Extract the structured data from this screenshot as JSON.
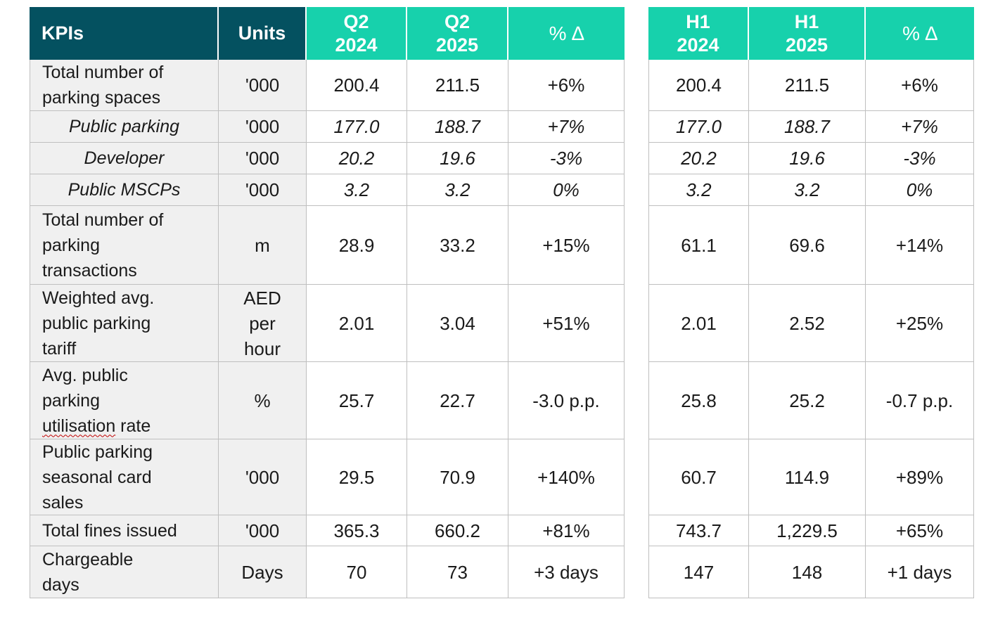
{
  "colors": {
    "header_dark": "#045160",
    "header_teal": "#17d1ac",
    "label_bg": "#f0f0f0",
    "grid_line": "#bfbfbf",
    "text": "#1a1a1a",
    "spellcheck_underline": "#c00000"
  },
  "header": {
    "kpis": "KPIs",
    "units": "Units",
    "q2_2024": "Q2\n2024",
    "q2_2025": "Q2\n2025",
    "q_delta": "% ∆",
    "h1_2024": "H1\n2024",
    "h1_2025": "H1\n2025",
    "h_delta": "% ∆"
  },
  "rows": [
    {
      "kpi": "Total number of\nparking spaces",
      "unit": "'000",
      "q2_2024": "200.4",
      "q2_2025": "211.5",
      "q_delta": "+6%",
      "h1_2024": "200.4",
      "h1_2025": "211.5",
      "h_delta": "+6%"
    },
    {
      "kpi": "Public parking",
      "unit": "'000",
      "q2_2024": "177.0",
      "q2_2025": "188.7",
      "q_delta": "+7%",
      "h1_2024": "177.0",
      "h1_2025": "188.7",
      "h_delta": "+7%"
    },
    {
      "kpi": "Developer",
      "unit": "'000",
      "q2_2024": "20.2",
      "q2_2025": "19.6",
      "q_delta": "-3%",
      "h1_2024": "20.2",
      "h1_2025": "19.6",
      "h_delta": "-3%"
    },
    {
      "kpi": "Public MSCPs",
      "unit": "'000",
      "q2_2024": "3.2",
      "q2_2025": "3.2",
      "q_delta": "0%",
      "h1_2024": "3.2",
      "h1_2025": "3.2",
      "h_delta": "0%"
    },
    {
      "kpi": "Total number of\nparking\ntransactions",
      "unit": "m",
      "q2_2024": "28.9",
      "q2_2025": "33.2",
      "q_delta": "+15%",
      "h1_2024": "61.1",
      "h1_2025": "69.6",
      "h_delta": "+14%"
    },
    {
      "kpi": "Weighted avg.\npublic parking\ntariff",
      "unit": "AED\nper\nhour",
      "q2_2024": "2.01",
      "q2_2025": "3.04",
      "q_delta": "+51%",
      "h1_2024": "2.01",
      "h1_2025": "2.52",
      "h_delta": "+25%"
    },
    {
      "kpi_pre": "Avg. public\nparking\n",
      "kpi_wavy": "utilisation",
      "kpi_post": " rate",
      "unit": "%",
      "q2_2024": "25.7",
      "q2_2025": "22.7",
      "q_delta": "-3.0 p.p.",
      "h1_2024": "25.8",
      "h1_2025": "25.2",
      "h_delta": "-0.7 p.p."
    },
    {
      "kpi": "Public parking\nseasonal card\nsales",
      "unit": "'000",
      "q2_2024": "29.5",
      "q2_2025": "70.9",
      "q_delta": "+140%",
      "h1_2024": "60.7",
      "h1_2025": "114.9",
      "h_delta": "+89%"
    },
    {
      "kpi": "Total fines issued",
      "unit": "'000",
      "q2_2024": "365.3",
      "q2_2025": "660.2",
      "q_delta": "+81%",
      "h1_2024": "743.7",
      "h1_2025": "1,229.5",
      "h_delta": "+65%"
    },
    {
      "kpi": "Chargeable\ndays",
      "unit": "Days",
      "q2_2024": "70",
      "q2_2025": "73",
      "q_delta": "+3 days",
      "h1_2024": "147",
      "h1_2025": "148",
      "h_delta": "+1 days"
    }
  ]
}
